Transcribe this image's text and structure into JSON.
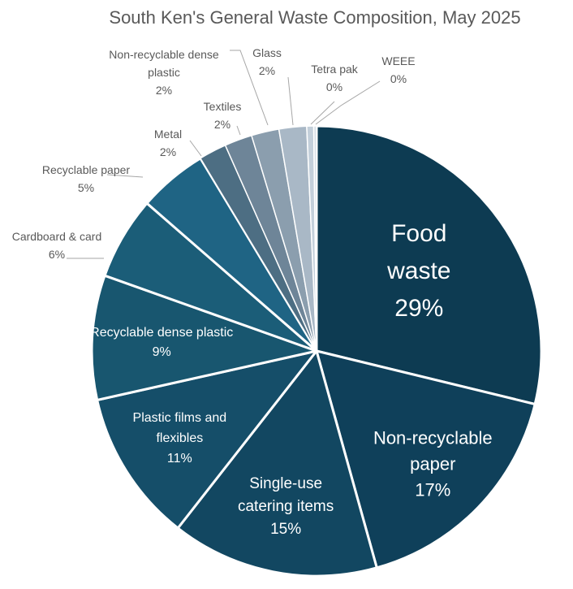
{
  "chart_data": {
    "type": "pie",
    "title": "South Ken's General Waste Composition, May 2025",
    "slices": [
      {
        "label": "Food waste",
        "value": 29,
        "label_lines": [
          "Food",
          "waste",
          "29%"
        ],
        "color": "#0d3b52"
      },
      {
        "label": "Non-recyclable paper",
        "value": 17,
        "label_lines": [
          "Non-recyclable",
          "paper",
          "17%"
        ],
        "color": "#0f405a"
      },
      {
        "label": "Single-use catering items",
        "value": 15,
        "label_lines": [
          "Single-use",
          "catering items",
          "15%"
        ],
        "color": "#124761"
      },
      {
        "label": "Plastic films and flexibles",
        "value": 11,
        "label_lines": [
          "Plastic films and",
          "flexibles",
          "11%"
        ],
        "color": "#154e69"
      },
      {
        "label": "Recyclable dense plastic",
        "value": 9,
        "label_lines": [
          "Recyclable dense plastic",
          "9%"
        ],
        "color": "#18566f"
      },
      {
        "label": "Cardboard & card",
        "value": 6,
        "label_lines": [
          "Cardboard & card",
          "6%"
        ],
        "color": "#1b5d78"
      },
      {
        "label": "Recyclable paper",
        "value": 5,
        "label_lines": [
          "Recyclable paper",
          "5%"
        ],
        "color": "#1f6484"
      },
      {
        "label": "Metal",
        "value": 2,
        "label_lines": [
          "Metal",
          "2%"
        ],
        "color": "#4d6e83"
      },
      {
        "label": "Textiles",
        "value": 2,
        "label_lines": [
          "Textiles",
          "2%"
        ],
        "color": "#6e8598"
      },
      {
        "label": "Non-recyclable dense plastic",
        "value": 2,
        "label_lines": [
          "Non-recyclable dense",
          "plastic",
          "2%"
        ],
        "color": "#8b9eae"
      },
      {
        "label": "Glass",
        "value": 2,
        "label_lines": [
          "Glass",
          "2%"
        ],
        "color": "#a9b8c6"
      },
      {
        "label": "Tetra pak",
        "value": 0.5,
        "label_lines": [
          "Tetra pak",
          "0%"
        ],
        "color": "#c3cfda"
      },
      {
        "label": "WEEE",
        "value": 0.2,
        "label_lines": [
          "WEEE",
          "0%"
        ],
        "color": "#d6dee6"
      }
    ]
  }
}
